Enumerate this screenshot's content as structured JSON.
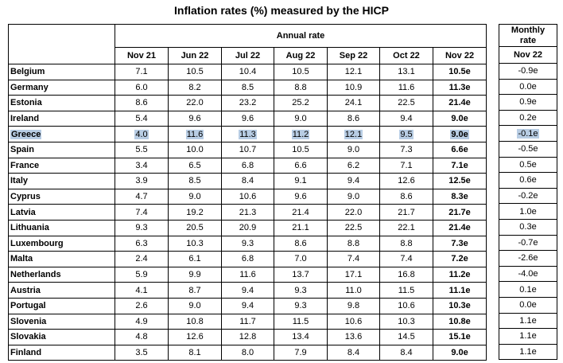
{
  "title": "Inflation rates (%) measured by the HICP",
  "annual_header": "Annual rate",
  "monthly_header_line1": "Monthly",
  "monthly_header_line2": "rate",
  "columns": [
    "Nov 21",
    "Jun 22",
    "Jul 22",
    "Aug 22",
    "Sep 22",
    "Oct 22",
    "Nov 22"
  ],
  "monthly_column": "Nov 22",
  "highlight_color": "#b8cde4",
  "rows": [
    {
      "country": "Belgium",
      "values": [
        "7.1",
        "10.5",
        "10.4",
        "10.5",
        "12.1",
        "13.1",
        "10.5e"
      ],
      "monthly": "-0.9e"
    },
    {
      "country": "Germany",
      "values": [
        "6.0",
        "8.2",
        "8.5",
        "8.8",
        "10.9",
        "11.6",
        "11.3e"
      ],
      "monthly": "0.0e"
    },
    {
      "country": "Estonia",
      "values": [
        "8.6",
        "22.0",
        "23.2",
        "25.2",
        "24.1",
        "22.5",
        "21.4e"
      ],
      "monthly": "0.9e"
    },
    {
      "country": "Ireland",
      "values": [
        "5.4",
        "9.6",
        "9.6",
        "9.0",
        "8.6",
        "9.4",
        "9.0e"
      ],
      "monthly": "0.2e"
    },
    {
      "country": "Greece",
      "values": [
        "4.0",
        "11.6",
        "11.3",
        "11.2",
        "12.1",
        "9.5",
        "9.0e"
      ],
      "monthly": "-0.1e",
      "selected": true
    },
    {
      "country": "Spain",
      "values": [
        "5.5",
        "10.0",
        "10.7",
        "10.5",
        "9.0",
        "7.3",
        "6.6e"
      ],
      "monthly": "-0.5e"
    },
    {
      "country": "France",
      "values": [
        "3.4",
        "6.5",
        "6.8",
        "6.6",
        "6.2",
        "7.1",
        "7.1e"
      ],
      "monthly": "0.5e"
    },
    {
      "country": "Italy",
      "values": [
        "3.9",
        "8.5",
        "8.4",
        "9.1",
        "9.4",
        "12.6",
        "12.5e"
      ],
      "monthly": "0.6e"
    },
    {
      "country": "Cyprus",
      "values": [
        "4.7",
        "9.0",
        "10.6",
        "9.6",
        "9.0",
        "8.6",
        "8.3e"
      ],
      "monthly": "-0.2e"
    },
    {
      "country": "Latvia",
      "values": [
        "7.4",
        "19.2",
        "21.3",
        "21.4",
        "22.0",
        "21.7",
        "21.7e"
      ],
      "monthly": "1.0e"
    },
    {
      "country": "Lithuania",
      "values": [
        "9.3",
        "20.5",
        "20.9",
        "21.1",
        "22.5",
        "22.1",
        "21.4e"
      ],
      "monthly": "0.3e"
    },
    {
      "country": "Luxembourg",
      "values": [
        "6.3",
        "10.3",
        "9.3",
        "8.6",
        "8.8",
        "8.8",
        "7.3e"
      ],
      "monthly": "-0.7e"
    },
    {
      "country": "Malta",
      "values": [
        "2.4",
        "6.1",
        "6.8",
        "7.0",
        "7.4",
        "7.4",
        "7.2e"
      ],
      "monthly": "-2.6e"
    },
    {
      "country": "Netherlands",
      "values": [
        "5.9",
        "9.9",
        "11.6",
        "13.7",
        "17.1",
        "16.8",
        "11.2e"
      ],
      "monthly": "-4.0e"
    },
    {
      "country": "Austria",
      "values": [
        "4.1",
        "8.7",
        "9.4",
        "9.3",
        "11.0",
        "11.5",
        "11.1e"
      ],
      "monthly": "0.1e"
    },
    {
      "country": "Portugal",
      "values": [
        "2.6",
        "9.0",
        "9.4",
        "9.3",
        "9.8",
        "10.6",
        "10.3e"
      ],
      "monthly": "0.0e"
    },
    {
      "country": "Slovenia",
      "values": [
        "4.9",
        "10.8",
        "11.7",
        "11.5",
        "10.6",
        "10.3",
        "10.8e"
      ],
      "monthly": "1.1e"
    },
    {
      "country": "Slovakia",
      "values": [
        "4.8",
        "12.6",
        "12.8",
        "13.4",
        "13.6",
        "14.5",
        "15.1e"
      ],
      "monthly": "1.1e"
    },
    {
      "country": "Finland",
      "values": [
        "3.5",
        "8.1",
        "8.0",
        "7.9",
        "8.4",
        "8.4",
        "9.0e"
      ],
      "monthly": "1.1e"
    }
  ]
}
